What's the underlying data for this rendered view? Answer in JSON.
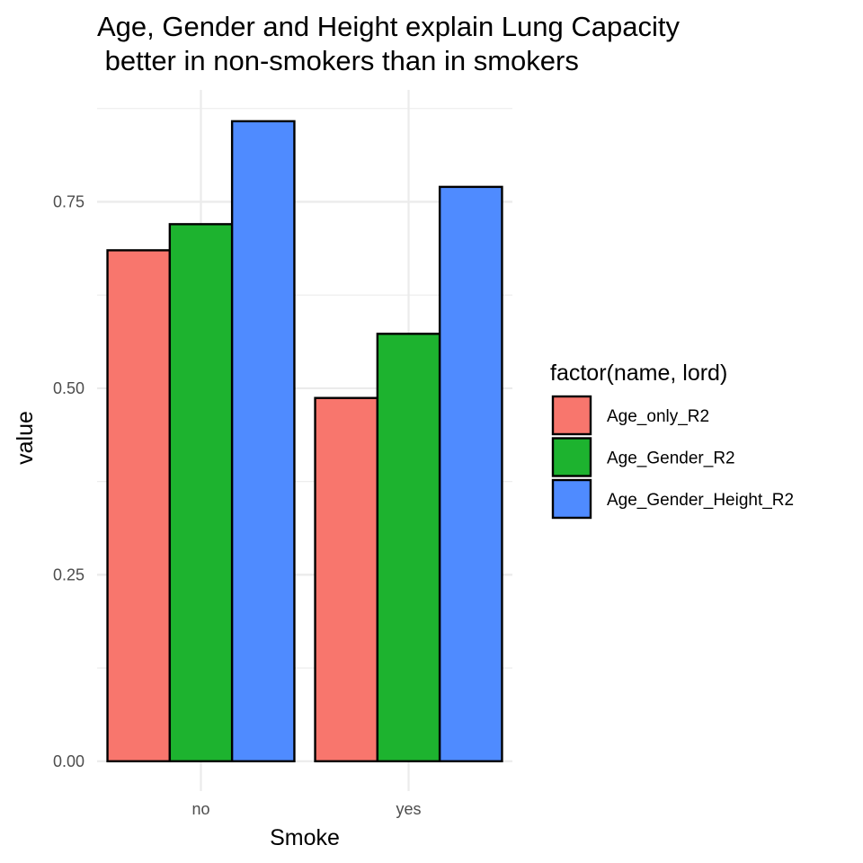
{
  "chart_data": {
    "type": "bar",
    "title_lines": [
      "Age, Gender and Height explain Lung Capacity",
      " better in non-smokers than in smokers"
    ],
    "xlabel": "Smoke",
    "ylabel": "value",
    "categories": [
      "no",
      "yes"
    ],
    "series": [
      {
        "name": "Age_only_R2",
        "color": "#F8766D",
        "values": [
          0.685,
          0.487
        ]
      },
      {
        "name": "Age_Gender_R2",
        "color": "#1DB32F",
        "values": [
          0.72,
          0.573
        ]
      },
      {
        "name": "Age_Gender_Height_R2",
        "color": "#4F8BFF",
        "values": [
          0.858,
          0.77
        ]
      }
    ],
    "ylim": [
      -0.04,
      0.9
    ],
    "y_ticks": [
      0,
      0.25,
      0.5,
      0.75
    ],
    "y_tick_labels": [
      "0.00",
      "0.25",
      "0.50",
      "0.75"
    ],
    "grid": true,
    "legend": {
      "title": "factor(name, lord)",
      "placement": "right"
    }
  }
}
